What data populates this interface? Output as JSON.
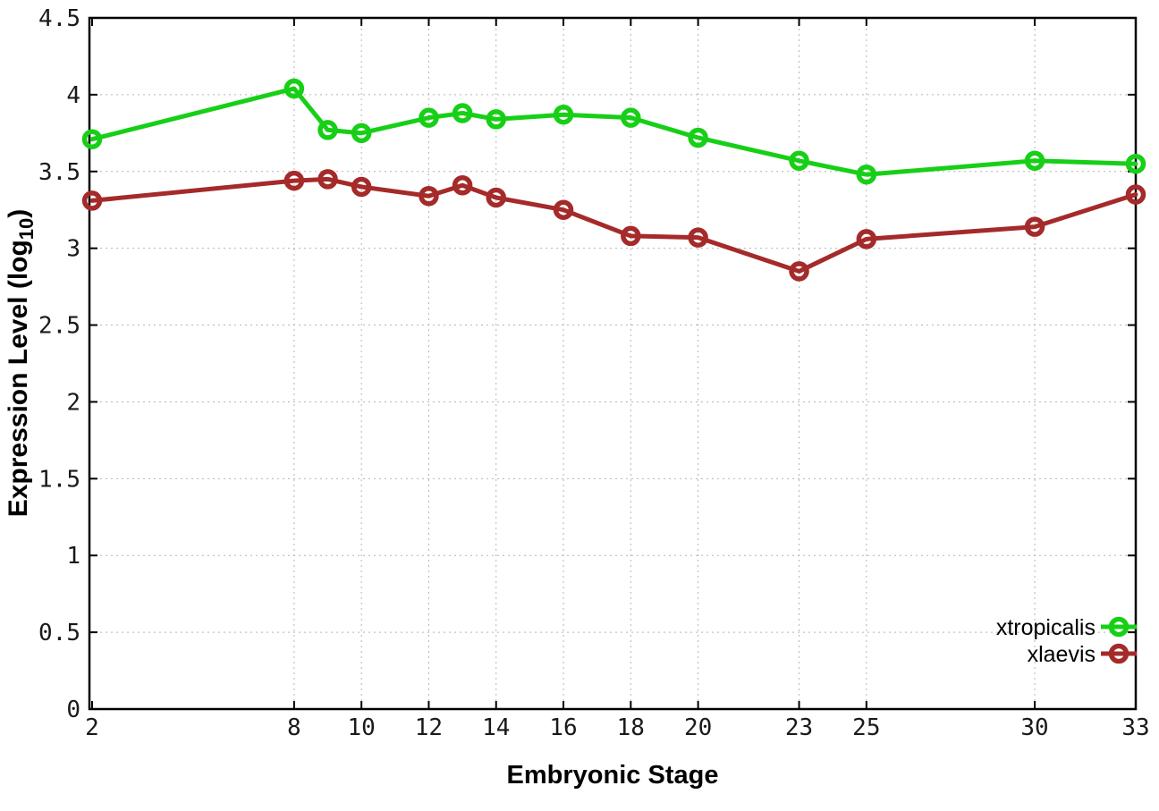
{
  "chart_data": {
    "type": "line",
    "title": "",
    "xlabel": "Embryonic Stage",
    "ylabel": "Expression Level (log10)",
    "ylabel_parts": {
      "pre": "Expression Level (log",
      "sub": "10",
      "post": ")"
    },
    "x": [
      2,
      8,
      9,
      10,
      12,
      13,
      14,
      16,
      18,
      20,
      23,
      25,
      30,
      33
    ],
    "series": [
      {
        "name": "xtropicalis",
        "color": "#17cf17",
        "values": [
          3.71,
          4.04,
          3.77,
          3.75,
          3.85,
          3.88,
          3.84,
          3.87,
          3.85,
          3.72,
          3.57,
          3.48,
          3.57,
          3.55
        ]
      },
      {
        "name": "xlaevis",
        "color": "#a52a2a",
        "values": [
          3.31,
          3.44,
          3.45,
          3.4,
          3.34,
          3.41,
          3.33,
          3.25,
          3.08,
          3.07,
          2.85,
          3.06,
          3.14,
          3.35
        ]
      }
    ],
    "xticks": [
      2,
      8,
      10,
      12,
      14,
      16,
      18,
      20,
      23,
      25,
      30,
      33
    ],
    "yticks": [
      0,
      0.5,
      1,
      1.5,
      2,
      2.5,
      3,
      3.5,
      4,
      4.5
    ],
    "xlim": [
      2,
      33
    ],
    "ylim": [
      0,
      4.5
    ],
    "grid": true,
    "legend_position": "bottom-right",
    "colors": {
      "grid": "#b4b4b4",
      "axis": "#000000",
      "background": "#ffffff"
    }
  }
}
